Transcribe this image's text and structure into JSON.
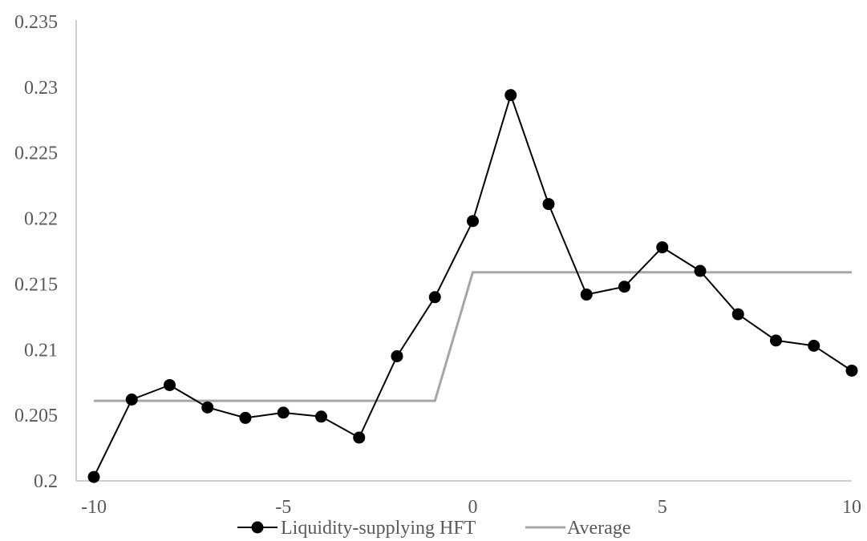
{
  "chart_data": {
    "type": "line",
    "x": [
      -10,
      -9,
      -8,
      -7,
      -6,
      -5,
      -4,
      -3,
      -2,
      -1,
      0,
      1,
      2,
      3,
      4,
      5,
      6,
      7,
      8,
      9,
      10
    ],
    "xlim": [
      -10,
      10
    ],
    "xticks": [
      -10,
      -5,
      0,
      5,
      10
    ],
    "xtick_labels": [
      "-10",
      "-5",
      "0",
      "5",
      "10"
    ],
    "ylim": [
      0.2,
      0.235
    ],
    "yticks": [
      0.2,
      0.205,
      0.21,
      0.215,
      0.22,
      0.225,
      0.23,
      0.235
    ],
    "ytick_labels": [
      "0.2",
      "0.205",
      "0.21",
      "0.215",
      "0.22",
      "0.225",
      "0.23",
      "0.235"
    ],
    "grid": false,
    "legend_position": "bottom",
    "series": [
      {
        "name": "Liquidity-supplying HFT",
        "color": "#000000",
        "marker": "circle",
        "values": [
          0.2003,
          0.2062,
          0.2073,
          0.2056,
          0.2048,
          0.2052,
          0.2049,
          0.2033,
          0.2095,
          0.214,
          0.2198,
          0.2294,
          0.2211,
          0.2142,
          0.2148,
          0.2178,
          0.216,
          0.2127,
          0.2107,
          0.2103,
          0.2084
        ]
      },
      {
        "name": "Average",
        "color": "#a6a6a6",
        "marker": "none",
        "values": [
          0.2061,
          0.2061,
          0.2061,
          0.2061,
          0.2061,
          0.2061,
          0.2061,
          0.2061,
          0.2061,
          0.2061,
          0.2159,
          0.2159,
          0.2159,
          0.2159,
          0.2159,
          0.2159,
          0.2159,
          0.2159,
          0.2159,
          0.2159,
          0.2159
        ]
      }
    ]
  }
}
